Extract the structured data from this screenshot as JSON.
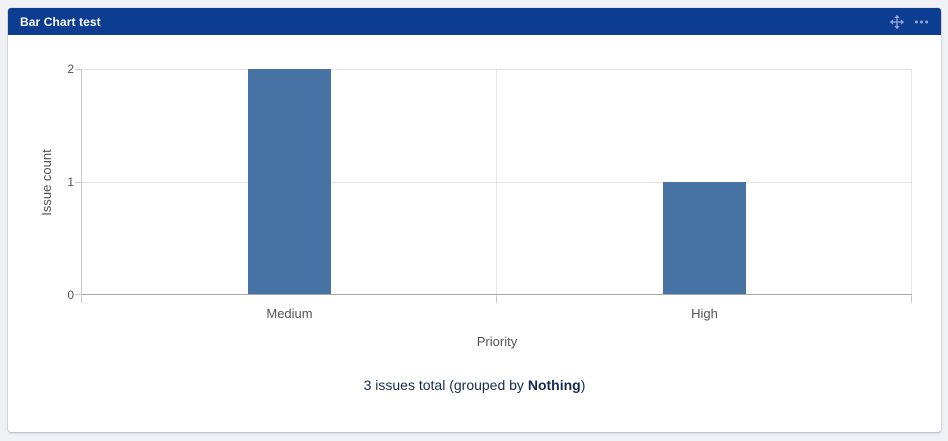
{
  "gadget": {
    "title": "Bar Chart test"
  },
  "chart_data": {
    "type": "bar",
    "title": "",
    "categories": [
      "Medium",
      "High"
    ],
    "values": [
      2,
      1
    ],
    "xlabel": "Priority",
    "ylabel": "Issue count",
    "ylim": [
      0,
      2
    ],
    "yticks": [
      0,
      1,
      2
    ],
    "bar_color": "#4673a4",
    "grid": true,
    "legend": false
  },
  "footer": {
    "prefix": "3 issues total (grouped by ",
    "group_by": "Nothing",
    "suffix": ")"
  },
  "icons": {
    "move": "move-icon",
    "more": "more-options-icon"
  },
  "colors": {
    "header_bg": "#0c3d91",
    "header_icon": "#8fa4d6",
    "bar": "#4673a4",
    "page_bg": "#f0f1f4",
    "summary_text": "#172b4d",
    "axis_text": "#545454",
    "gridline": "#e4e4e4",
    "axis_line": "#c9c9c9",
    "baseline": "#a6a6a6"
  }
}
